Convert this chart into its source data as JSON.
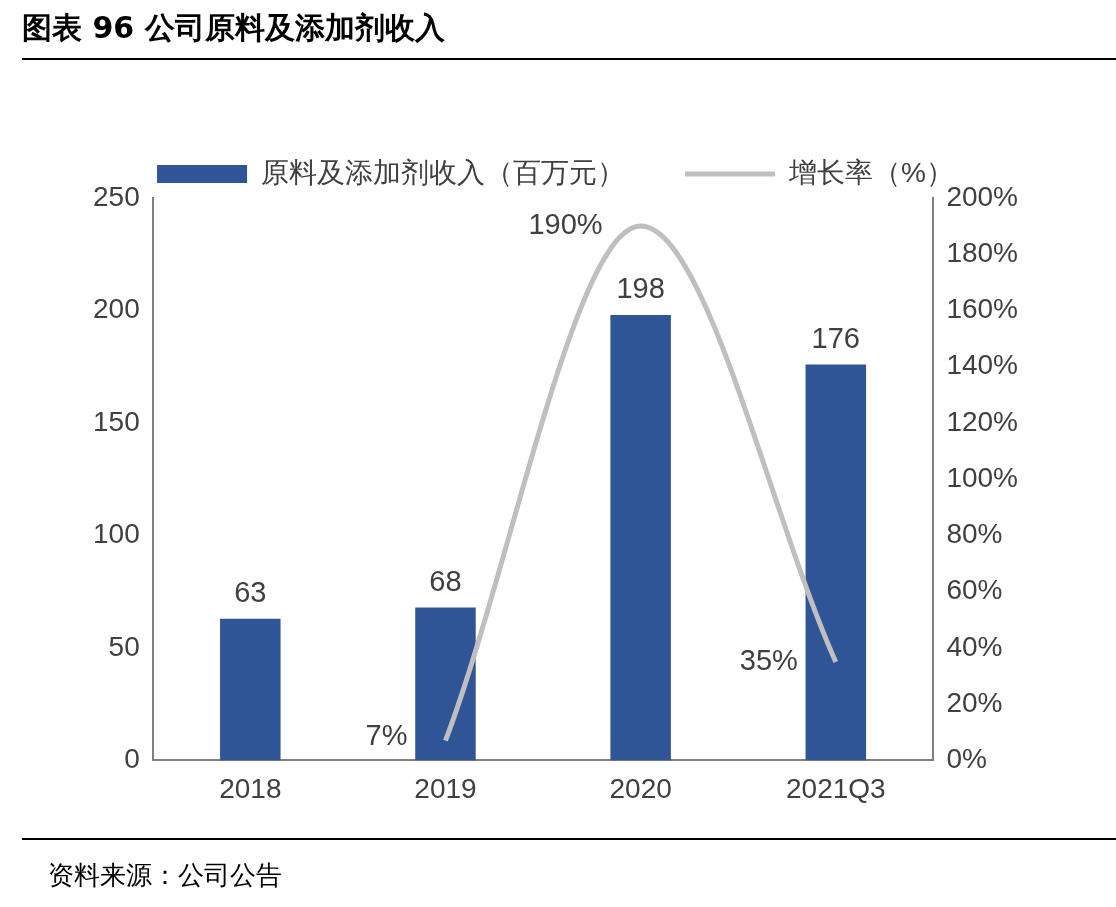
{
  "chart_data": {
    "type": "bar",
    "title": "图表 96  公司原料及添加剂收入",
    "categories": [
      "2018",
      "2019",
      "2020",
      "2021Q3"
    ],
    "series": [
      {
        "name": "原料及添加剂收入（百万元）",
        "color": "#2f5597",
        "values": [
          63,
          68,
          198,
          176
        ],
        "value_labels": [
          "63",
          "68",
          "198",
          "176"
        ]
      },
      {
        "name": "增长率（%）",
        "type": "line",
        "axis": "y2",
        "color": "#bfbfbf",
        "values": [
          null,
          7,
          190,
          35
        ],
        "value_labels": [
          null,
          "7%",
          "190%",
          "35%"
        ]
      }
    ],
    "ylim": [
      0,
      250
    ],
    "yticks": [
      0,
      50,
      100,
      150,
      200,
      250
    ],
    "y2lim": [
      0,
      200
    ],
    "y2ticks": [
      {
        "value": 0,
        "label": "0%"
      },
      {
        "value": 20,
        "label": "20%"
      },
      {
        "value": 40,
        "label": "40%"
      },
      {
        "value": 60,
        "label": "60%"
      },
      {
        "value": 80,
        "label": "80%"
      },
      {
        "value": 100,
        "label": "100%"
      },
      {
        "value": 120,
        "label": "120%"
      },
      {
        "value": 140,
        "label": "140%"
      },
      {
        "value": 160,
        "label": "160%"
      },
      {
        "value": 180,
        "label": "180%"
      },
      {
        "value": 200,
        "label": "200%"
      }
    ],
    "legend": "top",
    "grid": false,
    "marker": "none",
    "annotations": [
      "资料来源：公司公告"
    ]
  }
}
